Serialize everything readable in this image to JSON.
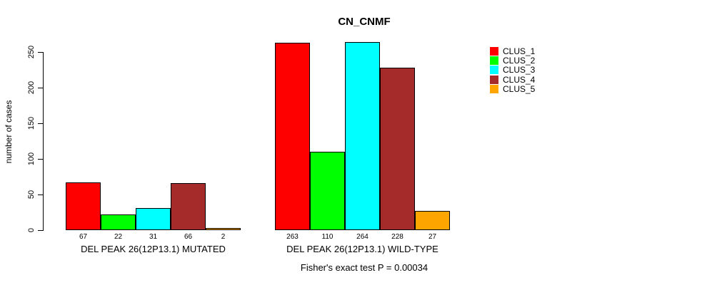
{
  "title": "CN_CNMF",
  "y_axis": {
    "label": "number of cases",
    "tick_labels": [
      "0",
      "50",
      "100",
      "150",
      "200",
      "250"
    ]
  },
  "footer": "Fisher's exact test P = 0.00034",
  "legend": {
    "items": [
      {
        "label": "CLUS_1",
        "color": "#FF0000"
      },
      {
        "label": "CLUS_2",
        "color": "#00FF00"
      },
      {
        "label": "CLUS_3",
        "color": "#00FFFF"
      },
      {
        "label": "CLUS_4",
        "color": "#A52A2A"
      },
      {
        "label": "CLUS_5",
        "color": "#FFA500"
      }
    ]
  },
  "chart_data": {
    "type": "bar",
    "title": "CN_CNMF",
    "ylabel": "number of cases",
    "xlabel": "",
    "ylim": [
      0,
      250
    ],
    "yticks": [
      0,
      50,
      100,
      150,
      200,
      250
    ],
    "grid": false,
    "legend_position": "right",
    "categories": [
      "DEL PEAK 26(12P13.1) MUTATED",
      "DEL PEAK 26(12P13.1) WILD-TYPE"
    ],
    "series": [
      {
        "name": "CLUS_1",
        "color": "#FF0000",
        "values": [
          67,
          263
        ]
      },
      {
        "name": "CLUS_2",
        "color": "#00FF00",
        "values": [
          22,
          110
        ]
      },
      {
        "name": "CLUS_3",
        "color": "#00FFFF",
        "values": [
          31,
          264
        ]
      },
      {
        "name": "CLUS_4",
        "color": "#A52A2A",
        "values": [
          66,
          228
        ]
      },
      {
        "name": "CLUS_5",
        "color": "#FFA500",
        "values": [
          2,
          27
        ]
      }
    ],
    "bar_value_labels": [
      [
        67,
        22,
        31,
        66,
        2
      ],
      [
        263,
        110,
        264,
        228,
        27
      ]
    ],
    "annotation": "Fisher's exact test P = 0.00034"
  }
}
